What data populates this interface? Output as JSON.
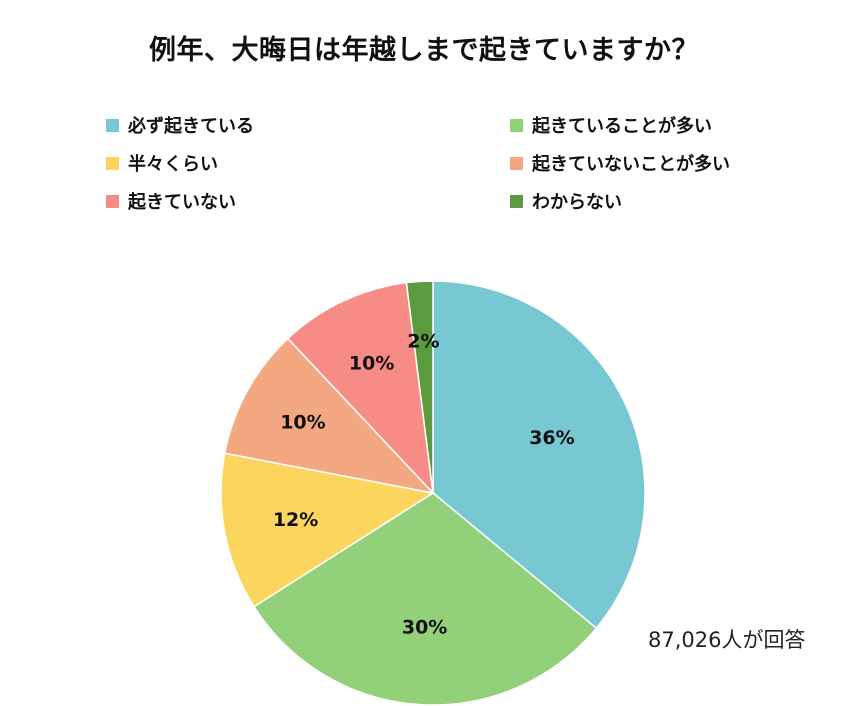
{
  "chart_data": {
    "type": "pie",
    "title": "例年、大晦日は年越しまで起きていますか？",
    "categories": [
      "必ず起きている",
      "起きていることが多い",
      "半々くらい",
      "起きていないことが多い",
      "起きていない",
      "わからない"
    ],
    "values": [
      36,
      30,
      12,
      10,
      10,
      2
    ],
    "labels": [
      "36%",
      "30%",
      "12%",
      "10%",
      "10%",
      "2%"
    ],
    "colors": [
      "#78c8d4",
      "#92d07a",
      "#fbd55d",
      "#f4a882",
      "#f78c87",
      "#5c9a40"
    ],
    "legend_position": "top",
    "note": "87,026人が回答"
  }
}
